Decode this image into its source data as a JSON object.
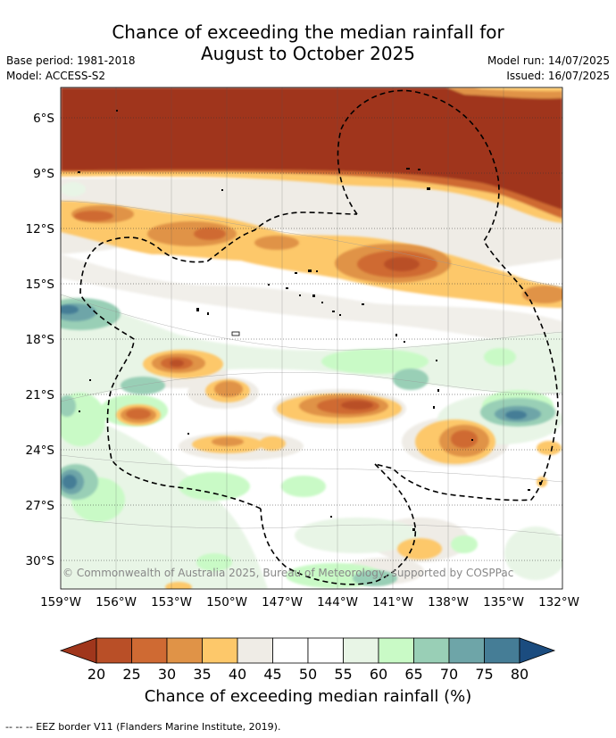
{
  "title_line1": "Chance of exceeding the median rainfall for",
  "title_line2": "August to October 2025",
  "base_period": "Base period: 1981-2018",
  "model": "Model: ACCESS-S2",
  "model_run": "Model run: 14/07/2025",
  "issued": "Issued: 16/07/2025",
  "copyright": "© Commonwealth of Australia 2025, Bureau of Meteorology, supported by COSPPac",
  "lat_labels": [
    "6°S",
    "9°S",
    "12°S",
    "15°S",
    "18°S",
    "21°S",
    "24°S",
    "27°S",
    "30°S"
  ],
  "lon_labels": [
    "159°W",
    "156°W",
    "153°W",
    "150°W",
    "147°W",
    "144°W",
    "141°W",
    "138°W",
    "135°W",
    "132°W"
  ],
  "colorbar": {
    "labels": [
      "20",
      "25",
      "30",
      "35",
      "40",
      "45",
      "50",
      "55",
      "60",
      "65",
      "70",
      "75",
      "80"
    ],
    "colors": [
      "#a0361c",
      "#b94f27",
      "#cf6a33",
      "#e09347",
      "#fdc86a",
      "#efece6",
      "#ffffff",
      "#ffffff",
      "#e8f5e6",
      "#c9fac6",
      "#99cfb6",
      "#6ea5a8",
      "#457d96",
      "#1b4c7f"
    ],
    "title": "Chance of exceeding median rainfall (%)"
  },
  "footer": "--  --  -- EEZ border V11 (Flanders Marine Institute, 2019)."
}
